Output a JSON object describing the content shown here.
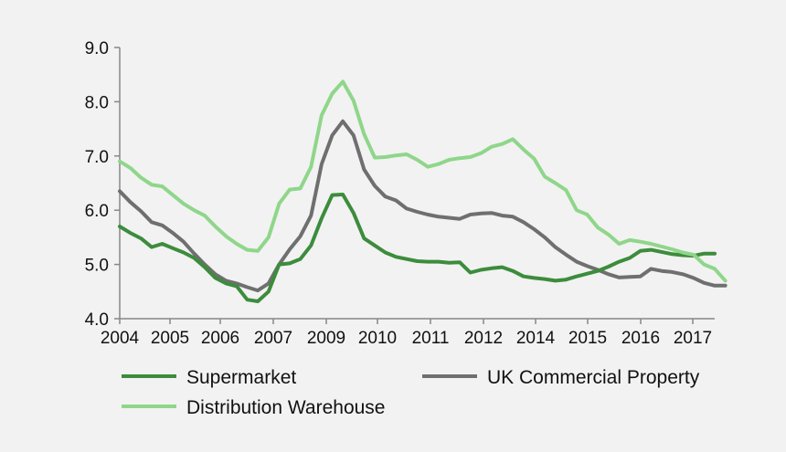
{
  "chart_data": {
    "type": "line",
    "title": "",
    "xlabel": "",
    "ylabel": "",
    "ylim": [
      4.0,
      9.0
    ],
    "y_ticks": [
      "4.0",
      "5.0",
      "6.0",
      "7.0",
      "8.0",
      "9.0"
    ],
    "x_ticks": [
      "2004",
      "2005",
      "2006",
      "2007",
      "2009",
      "2010",
      "2011",
      "2012",
      "2014",
      "2015",
      "2016",
      "2017"
    ],
    "grid": false,
    "legend_position": "bottom",
    "series": [
      {
        "name": "Supermarket",
        "color": "#3c8c3c",
        "points": [
          [
            "2004",
            5.7
          ],
          [
            "2004",
            5.58
          ],
          [
            "2004",
            5.48
          ],
          [
            "2004",
            5.32
          ],
          [
            "2005",
            5.38
          ],
          [
            "2005",
            5.3
          ],
          [
            "2005",
            5.22
          ],
          [
            "2005",
            5.12
          ],
          [
            "2006",
            4.95
          ],
          [
            "2006",
            4.75
          ],
          [
            "2006",
            4.65
          ],
          [
            "2006",
            4.6
          ],
          [
            "2006",
            4.35
          ],
          [
            "2006",
            4.32
          ],
          [
            "2007",
            4.5
          ],
          [
            "2007",
            5.0
          ],
          [
            "2007",
            5.02
          ],
          [
            "2007",
            5.1
          ],
          [
            "2007",
            5.35
          ],
          [
            "2009",
            5.85
          ],
          [
            "2009",
            6.28
          ],
          [
            "2009",
            6.29
          ],
          [
            "2009",
            5.95
          ],
          [
            "2009",
            5.48
          ],
          [
            "2010",
            5.35
          ],
          [
            "2010",
            5.22
          ],
          [
            "2010",
            5.14
          ],
          [
            "2010",
            5.1
          ],
          [
            "2011",
            5.06
          ],
          [
            "2011",
            5.05
          ],
          [
            "2011",
            5.05
          ],
          [
            "2011",
            5.03
          ],
          [
            "2011",
            5.04
          ],
          [
            "2012",
            4.85
          ],
          [
            "2012",
            4.9
          ],
          [
            "2012",
            4.93
          ],
          [
            "2012",
            4.95
          ],
          [
            "2012",
            4.88
          ],
          [
            "2014",
            4.78
          ],
          [
            "2014",
            4.75
          ],
          [
            "2014",
            4.73
          ],
          [
            "2014",
            4.7
          ],
          [
            "2015",
            4.72
          ],
          [
            "2015",
            4.78
          ],
          [
            "2015",
            4.83
          ],
          [
            "2015",
            4.88
          ],
          [
            "2015",
            4.96
          ],
          [
            "2016",
            5.05
          ],
          [
            "2016",
            5.12
          ],
          [
            "2016",
            5.25
          ],
          [
            "2016",
            5.27
          ],
          [
            "2016",
            5.23
          ],
          [
            "2017",
            5.19
          ],
          [
            "2017",
            5.17
          ],
          [
            "2017",
            5.16
          ],
          [
            "2017",
            5.2
          ],
          [
            "2017",
            5.2
          ]
        ]
      },
      {
        "name": "UK Commercial Property",
        "color": "#6f6f6f",
        "points": [
          [
            "2004",
            6.35
          ],
          [
            "2004",
            6.15
          ],
          [
            "2004",
            5.98
          ],
          [
            "2004",
            5.78
          ],
          [
            "2005",
            5.72
          ],
          [
            "2005",
            5.58
          ],
          [
            "2005",
            5.42
          ],
          [
            "2005",
            5.2
          ],
          [
            "2006",
            5.0
          ],
          [
            "2006",
            4.82
          ],
          [
            "2006",
            4.7
          ],
          [
            "2006",
            4.65
          ],
          [
            "2006",
            4.58
          ],
          [
            "2006",
            4.52
          ],
          [
            "2007",
            4.65
          ],
          [
            "2007",
            5.0
          ],
          [
            "2007",
            5.28
          ],
          [
            "2007",
            5.52
          ],
          [
            "2007",
            5.9
          ],
          [
            "2009",
            6.85
          ],
          [
            "2009",
            7.38
          ],
          [
            "2009",
            7.64
          ],
          [
            "2009",
            7.38
          ],
          [
            "2009",
            6.75
          ],
          [
            "2010",
            6.45
          ],
          [
            "2010",
            6.25
          ],
          [
            "2010",
            6.18
          ],
          [
            "2010",
            6.03
          ],
          [
            "2011",
            5.97
          ],
          [
            "2011",
            5.92
          ],
          [
            "2011",
            5.88
          ],
          [
            "2011",
            5.86
          ],
          [
            "2011",
            5.84
          ],
          [
            "2012",
            5.92
          ],
          [
            "2012",
            5.94
          ],
          [
            "2012",
            5.95
          ],
          [
            "2012",
            5.9
          ],
          [
            "2012",
            5.88
          ],
          [
            "2014",
            5.78
          ],
          [
            "2014",
            5.65
          ],
          [
            "2014",
            5.5
          ],
          [
            "2014",
            5.32
          ],
          [
            "2015",
            5.18
          ],
          [
            "2015",
            5.05
          ],
          [
            "2015",
            4.97
          ],
          [
            "2015",
            4.9
          ],
          [
            "2015",
            4.82
          ],
          [
            "2016",
            4.76
          ],
          [
            "2016",
            4.77
          ],
          [
            "2016",
            4.78
          ],
          [
            "2016",
            4.92
          ],
          [
            "2016",
            4.88
          ],
          [
            "2017",
            4.86
          ],
          [
            "2017",
            4.82
          ],
          [
            "2017",
            4.75
          ],
          [
            "2017",
            4.66
          ],
          [
            "2017",
            4.61
          ],
          [
            "2017",
            4.61
          ]
        ]
      },
      {
        "name": "Distribution Warehouse",
        "color": "#8fd68a",
        "points": [
          [
            "2004",
            6.9
          ],
          [
            "2004",
            6.78
          ],
          [
            "2004",
            6.6
          ],
          [
            "2004",
            6.47
          ],
          [
            "2005",
            6.44
          ],
          [
            "2005",
            6.28
          ],
          [
            "2005",
            6.12
          ],
          [
            "2005",
            6.0
          ],
          [
            "2006",
            5.9
          ],
          [
            "2006",
            5.7
          ],
          [
            "2006",
            5.52
          ],
          [
            "2006",
            5.38
          ],
          [
            "2006",
            5.27
          ],
          [
            "2006",
            5.25
          ],
          [
            "2007",
            5.5
          ],
          [
            "2007",
            6.12
          ],
          [
            "2007",
            6.38
          ],
          [
            "2007",
            6.4
          ],
          [
            "2007",
            6.8
          ],
          [
            "2009",
            7.75
          ],
          [
            "2009",
            8.15
          ],
          [
            "2009",
            8.37
          ],
          [
            "2009",
            8.02
          ],
          [
            "2009",
            7.4
          ],
          [
            "2010",
            6.97
          ],
          [
            "2010",
            6.98
          ],
          [
            "2010",
            7.01
          ],
          [
            "2010",
            7.03
          ],
          [
            "2011",
            6.93
          ],
          [
            "2011",
            6.8
          ],
          [
            "2011",
            6.85
          ],
          [
            "2011",
            6.93
          ],
          [
            "2011",
            6.96
          ],
          [
            "2012",
            6.98
          ],
          [
            "2012",
            7.05
          ],
          [
            "2012",
            7.17
          ],
          [
            "2012",
            7.22
          ],
          [
            "2012",
            7.31
          ],
          [
            "2014",
            7.12
          ],
          [
            "2014",
            6.95
          ],
          [
            "2014",
            6.62
          ],
          [
            "2014",
            6.5
          ],
          [
            "2015",
            6.37
          ],
          [
            "2015",
            6.0
          ],
          [
            "2015",
            5.92
          ],
          [
            "2015",
            5.68
          ],
          [
            "2015",
            5.55
          ],
          [
            "2016",
            5.38
          ],
          [
            "2016",
            5.45
          ],
          [
            "2016",
            5.42
          ],
          [
            "2016",
            5.38
          ],
          [
            "2016",
            5.33
          ],
          [
            "2017",
            5.28
          ],
          [
            "2017",
            5.22
          ],
          [
            "2017",
            5.18
          ],
          [
            "2017",
            5.0
          ],
          [
            "2017",
            4.92
          ],
          [
            "2017",
            4.7
          ]
        ]
      }
    ]
  }
}
